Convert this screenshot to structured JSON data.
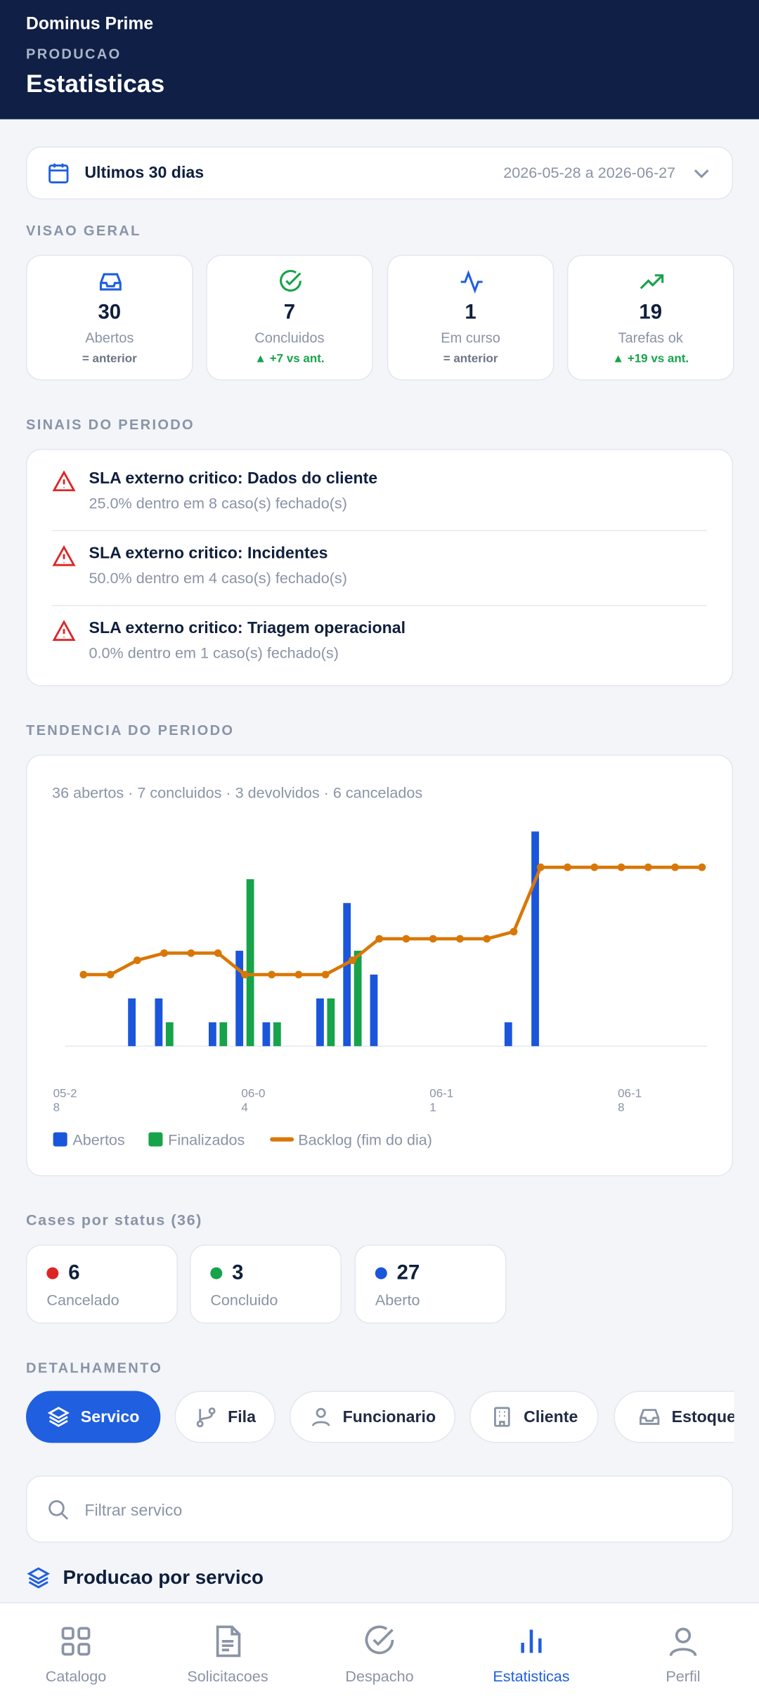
{
  "header": {
    "app": "Dominus Prime",
    "section": "PRODUCAO",
    "title": "Estatisticas"
  },
  "period": {
    "label": "Ultimos 30 dias",
    "range": "2026-05-28 a 2026-06-27"
  },
  "overview": {
    "title": "VISAO GERAL",
    "cards": [
      {
        "value": 30,
        "label": "Abertos",
        "delta": "= anterior",
        "color": "#1f5fe0",
        "delta_color": "#6b7385"
      },
      {
        "value": 7,
        "label": "Concluidos",
        "delta": "▲ +7 vs ant.",
        "color": "#16a34a",
        "delta_color": "#16a34a"
      },
      {
        "value": 1,
        "label": "Em curso",
        "delta": "= anterior",
        "color": "#1f5fe0",
        "delta_color": "#6b7385"
      },
      {
        "value": 19,
        "label": "Tarefas ok",
        "delta": "▲ +19 vs ant.",
        "color": "#16a34a",
        "delta_color": "#16a34a"
      }
    ]
  },
  "signals": {
    "title": "SINAIS DO PERIODO",
    "items": [
      {
        "title": "SLA externo critico: Dados do cliente",
        "detail": "25.0% dentro em 8 caso(s) fechado(s)"
      },
      {
        "title": "SLA externo critico: Incidentes",
        "detail": "50.0% dentro em 4 caso(s) fechado(s)"
      },
      {
        "title": "SLA externo critico: Triagem operacional",
        "detail": "0.0% dentro em 1 caso(s) fechado(s)"
      }
    ]
  },
  "chart_data": {
    "type": "bar",
    "title": "TENDENCIA DO PERIODO",
    "subtitle": "36 abertos · 7 concluidos · 3 devolvidos · 6 cancelados",
    "categories": [
      "05-28",
      null,
      null,
      null,
      null,
      null,
      null,
      "06-04",
      null,
      null,
      null,
      null,
      null,
      null,
      "06-11",
      null,
      null,
      null,
      null,
      null,
      null,
      "06-18",
      null,
      null
    ],
    "series": [
      {
        "name": "Abertos",
        "color": "#1a56db",
        "type": "bar",
        "values": [
          0,
          0,
          2,
          2,
          0,
          1,
          4,
          1,
          0,
          2,
          6,
          3,
          0,
          0,
          0,
          0,
          1,
          9,
          0,
          0,
          0,
          0,
          0,
          0
        ]
      },
      {
        "name": "Finalizados",
        "color": "#16a34a",
        "type": "bar",
        "values": [
          0,
          0,
          0,
          1,
          0,
          1,
          7,
          1,
          0,
          2,
          4,
          0,
          0,
          0,
          0,
          0,
          0,
          0,
          0,
          0,
          0,
          0,
          0,
          0
        ]
      },
      {
        "name": "Backlog (fim do dia)",
        "color": "#d97706",
        "type": "line",
        "values": [
          3,
          3,
          3.6,
          3.9,
          3.9,
          3.9,
          3,
          3,
          3,
          3,
          3.6,
          4.5,
          4.5,
          4.5,
          4.5,
          4.5,
          4.8,
          7.5,
          7.5,
          7.5,
          7.5,
          7.5,
          7.5,
          7.5
        ]
      }
    ],
    "ylim": [
      0,
      9
    ],
    "grid": false,
    "legend": "bottom"
  },
  "status": {
    "title": "Cases por status (36)",
    "items": [
      {
        "count": 6,
        "label": "Cancelado",
        "color": "#dc2626"
      },
      {
        "count": 3,
        "label": "Concluido",
        "color": "#16a34a"
      },
      {
        "count": 27,
        "label": "Aberto",
        "color": "#1a56db"
      }
    ]
  },
  "breakdown": {
    "title": "DETALHAMENTO",
    "tabs": [
      "Servico",
      "Fila",
      "Funcionario",
      "Cliente",
      "Estoque"
    ],
    "active_tab": 0,
    "search_placeholder": "Filtrar servico",
    "heading": "Producao por servico"
  },
  "nav": {
    "items": [
      "Catalogo",
      "Solicitacoes",
      "Despacho",
      "Estatisticas",
      "Perfil"
    ],
    "active": 3
  }
}
